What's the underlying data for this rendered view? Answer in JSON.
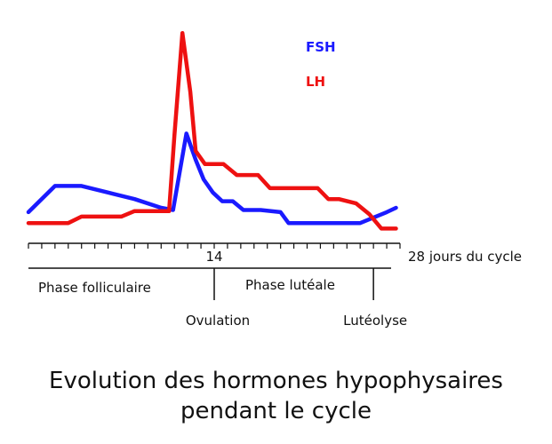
{
  "chart_data": {
    "type": "line",
    "title": "Evolution des hormones hypophysaires pendant le cycle",
    "title_lines": [
      "Evolution des hormones hypophysaires",
      "pendant le cycle"
    ],
    "xlabel": "28 jours du cycle",
    "xlim": [
      0,
      28
    ],
    "ylim": [
      0,
      100
    ],
    "x_tick_labels": [
      {
        "x": 14,
        "label": "14"
      }
    ],
    "grid": false,
    "legend": "top-right",
    "series": [
      {
        "name": "FSH",
        "color": "#1a1aff",
        "points": [
          [
            0,
            11
          ],
          [
            2,
            23
          ],
          [
            4,
            23
          ],
          [
            6,
            20
          ],
          [
            8,
            17
          ],
          [
            10,
            13
          ],
          [
            10.9,
            12
          ],
          [
            11.9,
            47
          ],
          [
            12.6,
            35
          ],
          [
            13.2,
            26
          ],
          [
            13.9,
            20
          ],
          [
            14.6,
            16
          ],
          [
            15.4,
            16
          ],
          [
            16.2,
            12
          ],
          [
            17.5,
            12
          ],
          [
            19,
            11
          ],
          [
            19.6,
            6
          ],
          [
            21,
            6
          ],
          [
            25,
            6
          ],
          [
            26,
            8.5
          ],
          [
            27,
            11
          ],
          [
            27.7,
            13
          ]
        ]
      },
      {
        "name": "LH",
        "color": "#ee1111",
        "points": [
          [
            0,
            6
          ],
          [
            3,
            6
          ],
          [
            4,
            9
          ],
          [
            7,
            9
          ],
          [
            8,
            11.5
          ],
          [
            10.6,
            11.5
          ],
          [
            11,
            46
          ],
          [
            11.6,
            93
          ],
          [
            12.2,
            66
          ],
          [
            12.6,
            39
          ],
          [
            13.3,
            33
          ],
          [
            14.7,
            33
          ],
          [
            15.7,
            28
          ],
          [
            17.3,
            28
          ],
          [
            18.2,
            22
          ],
          [
            21.8,
            22
          ],
          [
            22.6,
            17
          ],
          [
            23.4,
            17
          ],
          [
            24.7,
            15
          ],
          [
            25.7,
            10
          ],
          [
            26.6,
            3.5
          ],
          [
            27.7,
            3.5
          ]
        ]
      }
    ],
    "phases": {
      "follicular": "Phase folliculaire",
      "luteal": "Phase lutéale"
    },
    "events": [
      {
        "label": "Ovulation",
        "x": 14
      },
      {
        "label": "Lutéolyse",
        "x": 26
      }
    ]
  }
}
